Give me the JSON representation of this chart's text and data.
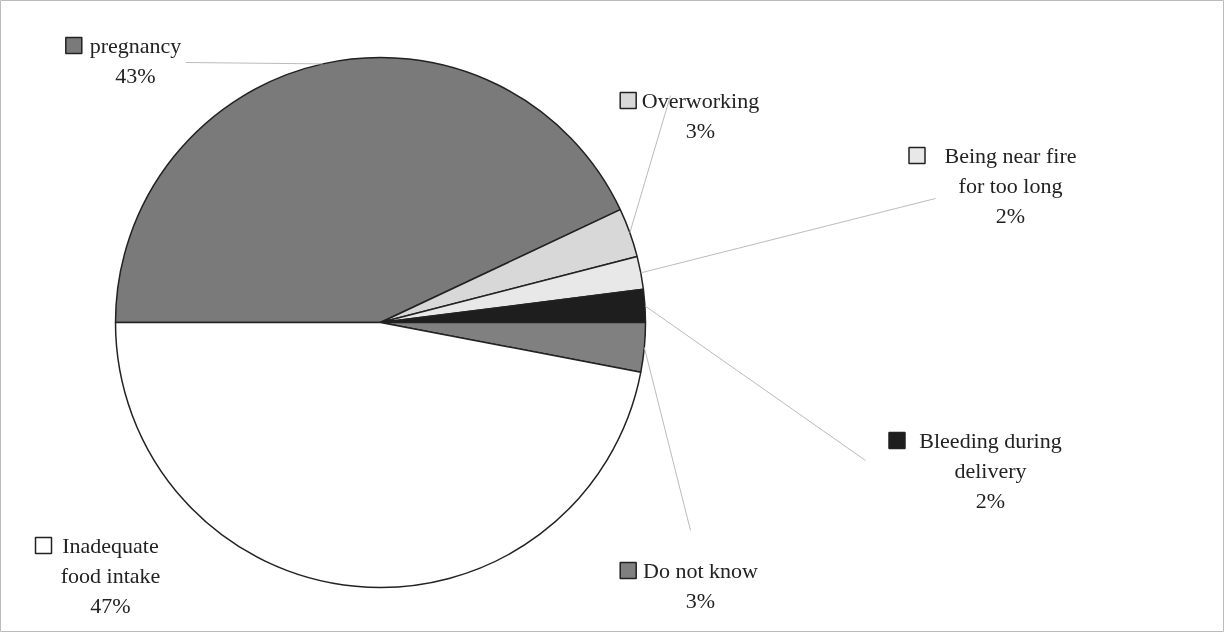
{
  "chart_data": {
    "type": "pie",
    "categories": [
      "pregnancy",
      "Overworking",
      "Being near fire for too long",
      "Bleeding during delivery",
      "Do not know",
      "Inadequate food intake"
    ],
    "values": [
      43,
      3,
      2,
      2,
      3,
      47
    ],
    "value_labels": [
      "43%",
      "3%",
      "2%",
      "2%",
      "3%",
      "47%"
    ],
    "colors": [
      "#7a7a7a",
      "#d8d8d8",
      "#e8e8e8",
      "#1e1e1e",
      "#808080",
      "#ffffff"
    ],
    "legend": "right"
  }
}
